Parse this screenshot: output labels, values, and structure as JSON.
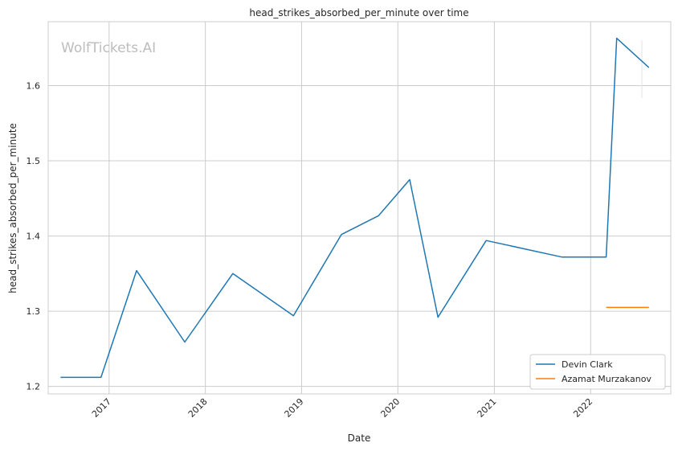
{
  "chart_data": {
    "type": "line",
    "title": "head_strikes_absorbed_per_minute over time",
    "xlabel": "Date",
    "ylabel": "head_strikes_absorbed_per_minute",
    "watermark": "WolfTickets.AI",
    "x_axis": {
      "type": "date",
      "range": [
        "2016-05-15",
        "2022-11-01"
      ],
      "tick_labels": [
        "2017",
        "2018",
        "2019",
        "2020",
        "2021",
        "2022"
      ]
    },
    "y_axis": {
      "range": [
        1.19,
        1.685
      ],
      "ticks": [
        1.2,
        1.3,
        1.4,
        1.5,
        1.6
      ],
      "tick_labels": [
        "1.2",
        "1.3",
        "1.4",
        "1.5",
        "1.6"
      ]
    },
    "grid": true,
    "legend_position": "lower-right",
    "series": [
      {
        "name": "Devin Clark",
        "color": "#1f77b4",
        "points": [
          {
            "x": "2016-07-01",
            "y": 1.212
          },
          {
            "x": "2016-12-01",
            "y": 1.212
          },
          {
            "x": "2017-04-15",
            "y": 1.354
          },
          {
            "x": "2017-10-15",
            "y": 1.259
          },
          {
            "x": "2018-04-15",
            "y": 1.35
          },
          {
            "x": "2018-12-01",
            "y": 1.294
          },
          {
            "x": "2019-06-01",
            "y": 1.402
          },
          {
            "x": "2019-10-20",
            "y": 1.427
          },
          {
            "x": "2020-02-15",
            "y": 1.475
          },
          {
            "x": "2020-06-01",
            "y": 1.292
          },
          {
            "x": "2020-12-01",
            "y": 1.394
          },
          {
            "x": "2021-09-15",
            "y": 1.372
          },
          {
            "x": "2022-03-01",
            "y": 1.372
          },
          {
            "x": "2022-04-10",
            "y": 1.663
          },
          {
            "x": "2022-08-10",
            "y": 1.624
          }
        ]
      },
      {
        "name": "Azamat Murzakanov",
        "color": "#ff7f0e",
        "points": [
          {
            "x": "2022-03-01",
            "y": 1.305
          },
          {
            "x": "2022-08-10",
            "y": 1.305
          }
        ]
      }
    ]
  }
}
